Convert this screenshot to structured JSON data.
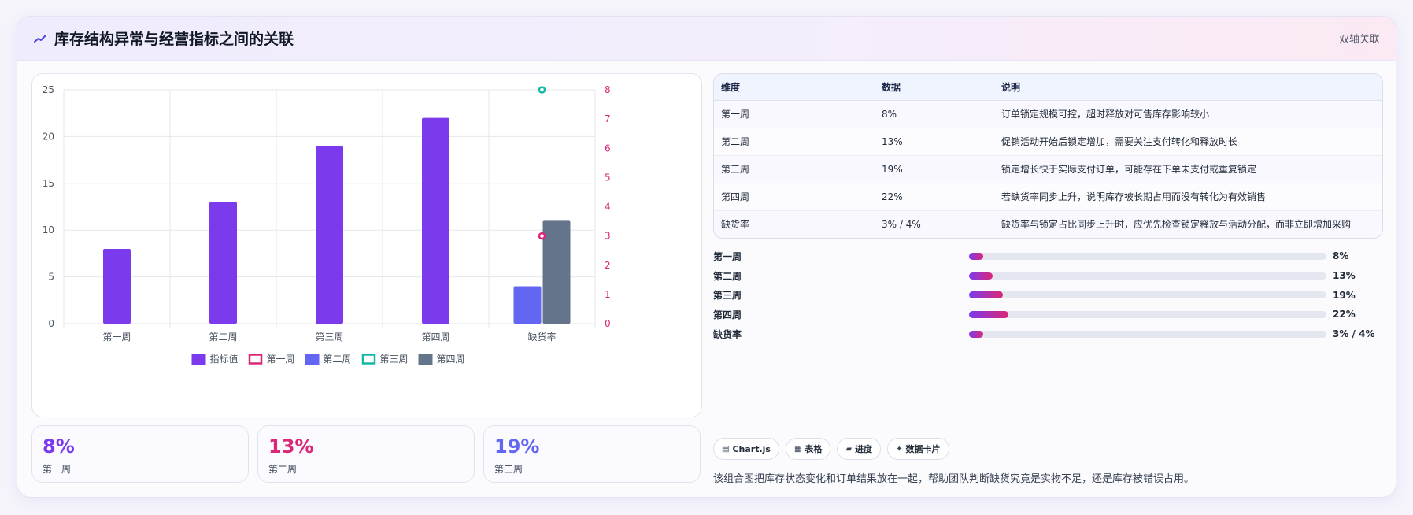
{
  "header": {
    "title": "库存结构异常与经营指标之间的关联",
    "tag": "双轴关联",
    "icon": "trend-line-icon"
  },
  "chart_data": {
    "type": "bar",
    "categories": [
      "第一周",
      "第二周",
      "第三周",
      "第四周",
      "缺货率"
    ],
    "y_left": {
      "range": [
        0,
        25
      ],
      "ticks": [
        "0",
        "5",
        "10",
        "15",
        "20",
        "25"
      ]
    },
    "y_right": {
      "range": [
        0,
        8
      ],
      "ticks": [
        "0",
        "1",
        "2",
        "3",
        "4",
        "5",
        "6",
        "7",
        "8"
      ]
    },
    "grid": true,
    "legend_position": "bottom",
    "series": [
      {
        "name": "指标值",
        "type": "bar",
        "axis": "left",
        "color": "#7c3aed",
        "values": [
          8,
          13,
          19,
          22,
          null
        ]
      },
      {
        "name": "第一周",
        "type": "point",
        "axis": "right",
        "color": "#db2777",
        "values": [
          null,
          null,
          null,
          null,
          3
        ]
      },
      {
        "name": "第二周",
        "type": "bar",
        "axis": "left",
        "color": "#6366f1",
        "values": [
          null,
          null,
          null,
          null,
          4
        ]
      },
      {
        "name": "第三周",
        "type": "point",
        "axis": "right",
        "color": "#14b8a6",
        "values": [
          null,
          null,
          null,
          null,
          8
        ]
      },
      {
        "name": "第四周",
        "type": "bar",
        "axis": "left",
        "color": "#64748b",
        "values": [
          null,
          null,
          null,
          null,
          11
        ]
      }
    ]
  },
  "stats": [
    {
      "value": "8%",
      "label": "第一周",
      "color": "#7c3aed"
    },
    {
      "value": "13%",
      "label": "第二周",
      "color": "#db2777"
    },
    {
      "value": "19%",
      "label": "第三周",
      "color": "#6366f1"
    }
  ],
  "table": {
    "headers": [
      "维度",
      "数据",
      "说明"
    ],
    "rows": [
      [
        "第一周",
        "8%",
        "订单锁定规模可控，超时释放对可售库存影响较小"
      ],
      [
        "第二周",
        "13%",
        "促销活动开始后锁定增加，需要关注支付转化和释放时长"
      ],
      [
        "第三周",
        "19%",
        "锁定增长快于实际支付订单，可能存在下单未支付或重复锁定"
      ],
      [
        "第四周",
        "22%",
        "若缺货率同步上升，说明库存被长期占用而没有转化为有效销售"
      ],
      [
        "缺货率",
        "3% / 4%",
        "缺货率与锁定占比同步上升时，应优先检查锁定释放与活动分配，而非立即增加采购"
      ]
    ]
  },
  "progress": [
    {
      "label": "第一周",
      "value": "8%",
      "fraction": 0.04
    },
    {
      "label": "第二周",
      "value": "13%",
      "fraction": 0.065
    },
    {
      "label": "第三周",
      "value": "19%",
      "fraction": 0.095
    },
    {
      "label": "第四周",
      "value": "22%",
      "fraction": 0.11
    },
    {
      "label": "缺货率",
      "value": "3% / 4%",
      "fraction": 0.04
    }
  ],
  "chips": [
    {
      "icon": "▤",
      "label": "Chart.js"
    },
    {
      "icon": "▦",
      "label": "表格"
    },
    {
      "icon": "▰",
      "label": "进度"
    },
    {
      "icon": "✦",
      "label": "数据卡片"
    }
  ],
  "note": "该组合图把库存状态变化和订单结果放在一起，帮助团队判断缺货究竟是实物不足，还是库存被错误占用。"
}
